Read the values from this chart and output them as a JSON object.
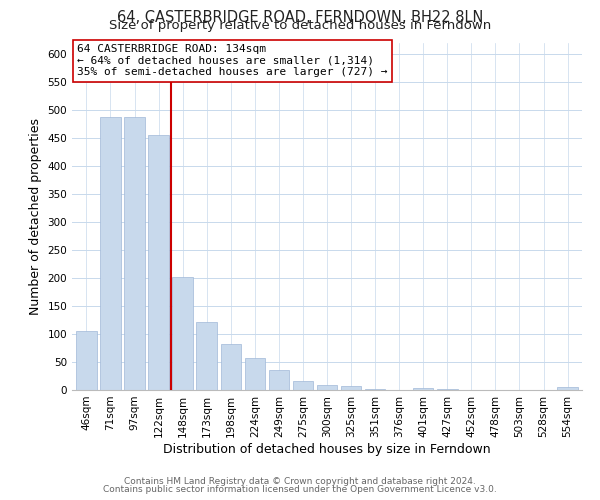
{
  "title": "64, CASTERBRIDGE ROAD, FERNDOWN, BH22 8LN",
  "subtitle": "Size of property relative to detached houses in Ferndown",
  "xlabel": "Distribution of detached houses by size in Ferndown",
  "ylabel": "Number of detached properties",
  "bar_labels": [
    "46sqm",
    "71sqm",
    "97sqm",
    "122sqm",
    "148sqm",
    "173sqm",
    "198sqm",
    "224sqm",
    "249sqm",
    "275sqm",
    "300sqm",
    "325sqm",
    "351sqm",
    "376sqm",
    "401sqm",
    "427sqm",
    "452sqm",
    "478sqm",
    "503sqm",
    "528sqm",
    "554sqm"
  ],
  "bar_values": [
    105,
    487,
    487,
    455,
    202,
    121,
    82,
    57,
    35,
    16,
    9,
    8,
    2,
    0,
    3,
    2,
    0,
    0,
    0,
    0,
    5
  ],
  "bar_color": "#c8d9ec",
  "bar_edge_color": "#a0b8d8",
  "vline_x": 3.5,
  "vline_color": "#cc0000",
  "annotation_line1": "64 CASTERBRIDGE ROAD: 134sqm",
  "annotation_line2": "← 64% of detached houses are smaller (1,314)",
  "annotation_line3": "35% of semi-detached houses are larger (727) →",
  "annotation_box_edge_color": "#cc0000",
  "ylim": [
    0,
    620
  ],
  "yticks": [
    0,
    50,
    100,
    150,
    200,
    250,
    300,
    350,
    400,
    450,
    500,
    550,
    600
  ],
  "footer_line1": "Contains HM Land Registry data © Crown copyright and database right 2024.",
  "footer_line2": "Contains public sector information licensed under the Open Government Licence v3.0.",
  "bg_color": "#ffffff",
  "grid_color": "#c8d9ec",
  "title_fontsize": 10.5,
  "subtitle_fontsize": 9.5,
  "axis_label_fontsize": 9,
  "tick_fontsize": 7.5,
  "annotation_fontsize": 8,
  "footer_fontsize": 6.5
}
